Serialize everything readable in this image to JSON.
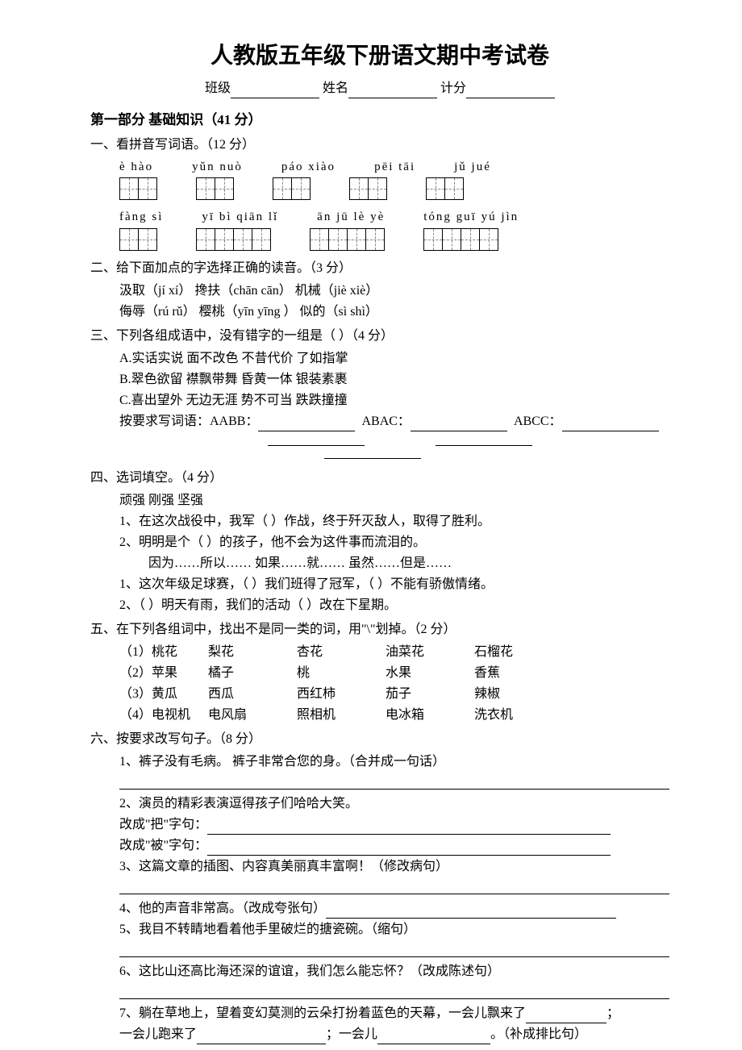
{
  "title": "人教版五年级下册语文期中考试卷",
  "info": {
    "class_label": "班级",
    "name_label": "姓名",
    "score_label": "计分"
  },
  "part1_heading": "第一部分 基础知识（41 分）",
  "q1": {
    "heading": "一、看拼音写词语。（12 分）",
    "row1_pinyin": [
      "è  hào",
      "yǔn  nuò",
      "páo  xiào",
      "pēi tāi",
      "jǔ  jué"
    ],
    "row1_boxes": [
      2,
      2,
      2,
      2,
      2
    ],
    "row2_pinyin": [
      "fàng sì",
      "yī  bì  qiān  lǐ",
      "ān  jū  lè  yè",
      "tóng guī  yú  jìn"
    ],
    "row2_boxes": [
      2,
      4,
      4,
      4
    ]
  },
  "q2": {
    "heading": "二、给下面加点的字选择正确的读音。（3 分）",
    "lines": [
      "汲取（jí    xí）        搀扶（chān    cān）        机械（jiè   xiè）",
      "侮辱（rú    rǔ）        樱桃（yīn   yīng ）             似的（sì    shì）"
    ]
  },
  "q3": {
    "heading": "三、下列各组成语中，没有错字的一组是（    ）（4 分）",
    "options": [
      "A.实话实说      面不改色      不昔代价      了如指掌",
      "B.翠色欲留      襟飘带舞      昏黄一体      银装素裹",
      "C.喜出望外      无边无涯      势不可当      跌跌撞撞"
    ],
    "prompt1": "按要求写词语：AABB：",
    "prompt2": "ABAC：",
    "prompt3": "ABCC："
  },
  "q4": {
    "heading": "四、选词填空。（4 分）",
    "words": "顽强      刚强      坚强",
    "l1": "1、在这次战役中，我军（            ）作战，终于歼灭敌人，取得了胜利。",
    "l2": "2、明明是个（            ）的孩子，他不会为这件事而流泪的。",
    "conj": "因为……所以……      如果……就……      虽然……但是……",
    "l3": "1、这次年级足球赛，（        ）我们班得了冠军，（            ）不能有骄傲情绪。",
    "l4": "2、（            ）明天有雨，我们的活动（            ）改在下星期。"
  },
  "q5": {
    "heading": "五、在下列各组词中，找出不是同一类的词，用\"\\\"划掉。（2 分）",
    "rows": [
      [
        "（1）桃花",
        "梨花",
        "杏花",
        "油菜花",
        "石榴花"
      ],
      [
        "（2）苹果",
        "橘子",
        "桃",
        "水果",
        "香蕉"
      ],
      [
        "（3）黄瓜",
        "西瓜",
        "西红柿",
        "茄子",
        "辣椒"
      ],
      [
        "（4）电视机",
        "电风扇",
        "照相机",
        "电冰箱",
        "洗衣机"
      ]
    ]
  },
  "q6": {
    "heading": "六、按要求改写句子。（8 分）",
    "l1": "1、裤子没有毛病。      裤子非常合您的身。（合并成一句话）",
    "l2": "2、演员的精彩表演逗得孩子们哈哈大笑。",
    "l2a": "改成\"把\"字句：",
    "l2b": "改成\"被\"字句：",
    "l3": "3、这篇文章的插图、内容真美丽真丰富啊！（修改病句）",
    "l4": "4、他的声音非常高。（改成夸张句）",
    "l5": "5、我目不转睛地看着他手里破烂的搪瓷碗。（缩句）",
    "l6": "6、这比山还高比海还深的谊谊，我们怎么能忘怀？（改成陈述句）",
    "l7a": "7、躺在草地上，望着变幻莫测的云朵打扮着蓝色的天幕，一会儿飘来了",
    "l7b": "；",
    "l7c": "一会儿跑来了",
    "l7d": "；一会儿",
    "l7e": "。（补成排比句）"
  }
}
